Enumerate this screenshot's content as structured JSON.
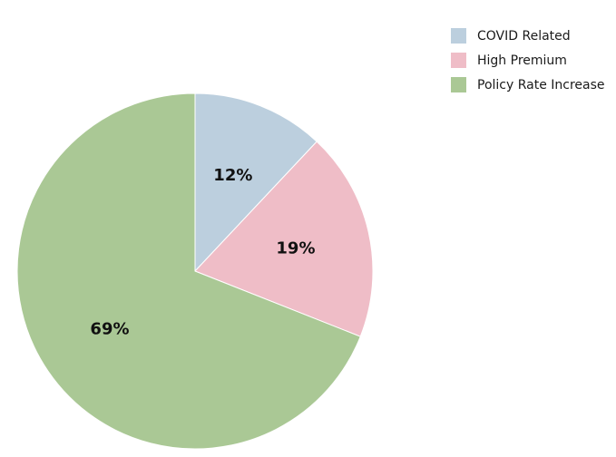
{
  "chart_data": {
    "type": "pie",
    "categories": [
      "COVID Related",
      "High Premium",
      "Policy Rate Increase"
    ],
    "values": [
      12,
      19,
      69
    ],
    "data_labels": [
      "12%",
      "19%",
      "69%"
    ],
    "colors": [
      "#bccfde",
      "#efbdc7",
      "#aac895"
    ],
    "start_angle_deg": 0,
    "direction": "clockwise",
    "legend_position": "top-right"
  }
}
